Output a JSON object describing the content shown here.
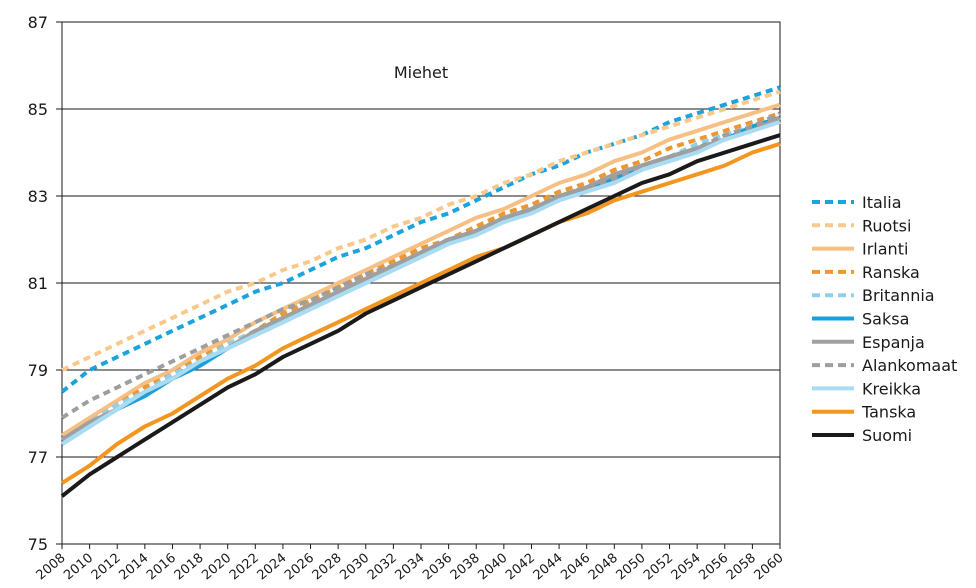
{
  "chart_data": {
    "type": "line",
    "title": "Miehet",
    "xlabel": "",
    "ylabel": "",
    "x": [
      2008,
      2010,
      2012,
      2014,
      2016,
      2018,
      2020,
      2022,
      2024,
      2026,
      2028,
      2030,
      2032,
      2034,
      2036,
      2038,
      2040,
      2042,
      2044,
      2046,
      2048,
      2050,
      2052,
      2054,
      2056,
      2058,
      2060
    ],
    "x_tick_labels": [
      "2008",
      "2010",
      "2012",
      "2014",
      "2016",
      "2018",
      "2020",
      "2022",
      "2024",
      "2026",
      "2028",
      "2030",
      "2032",
      "2034",
      "2036",
      "2038",
      "2040",
      "2042",
      "2044",
      "2046",
      "2048",
      "2050",
      "2052",
      "2054",
      "2056",
      "2058",
      "2060"
    ],
    "y_ticks": [
      75,
      77,
      79,
      81,
      83,
      85,
      87
    ],
    "ylim": [
      75,
      87
    ],
    "xlim": [
      2008,
      2060
    ],
    "grid": "horizontal",
    "legend_position": "right",
    "series": [
      {
        "name": "Italia",
        "color": "#1aa3dc",
        "dash": "dashed",
        "values": [
          78.5,
          79.0,
          79.3,
          79.6,
          79.9,
          80.2,
          80.5,
          80.8,
          81.0,
          81.3,
          81.6,
          81.8,
          82.1,
          82.4,
          82.6,
          82.9,
          83.2,
          83.5,
          83.7,
          84.0,
          84.2,
          84.4,
          84.7,
          84.9,
          85.1,
          85.3,
          85.5
        ]
      },
      {
        "name": "Ruotsi",
        "color": "#f9c98c",
        "dash": "dashed",
        "values": [
          79.0,
          79.3,
          79.6,
          79.9,
          80.2,
          80.5,
          80.8,
          81.0,
          81.3,
          81.5,
          81.8,
          82.0,
          82.3,
          82.5,
          82.8,
          83.0,
          83.3,
          83.5,
          83.8,
          84.0,
          84.2,
          84.4,
          84.6,
          84.8,
          85.0,
          85.2,
          85.4
        ]
      },
      {
        "name": "Irlanti",
        "color": "#f6bf84",
        "dash": "solid",
        "values": [
          77.5,
          77.9,
          78.3,
          78.7,
          79.0,
          79.4,
          79.7,
          80.1,
          80.4,
          80.7,
          81.0,
          81.3,
          81.6,
          81.9,
          82.2,
          82.5,
          82.7,
          83.0,
          83.3,
          83.5,
          83.8,
          84.0,
          84.3,
          84.5,
          84.7,
          84.9,
          85.1
        ]
      },
      {
        "name": "Ranska",
        "color": "#f0962e",
        "dash": "dashed",
        "values": [
          77.4,
          77.8,
          78.2,
          78.6,
          78.9,
          79.3,
          79.6,
          79.9,
          80.3,
          80.6,
          80.9,
          81.2,
          81.5,
          81.8,
          82.0,
          82.3,
          82.6,
          82.8,
          83.1,
          83.3,
          83.6,
          83.8,
          84.1,
          84.3,
          84.5,
          84.7,
          84.9
        ]
      },
      {
        "name": "Britannia",
        "color": "#8fd0ef",
        "dash": "dashed",
        "values": [
          77.4,
          77.8,
          78.2,
          78.5,
          78.9,
          79.2,
          79.6,
          79.9,
          80.2,
          80.5,
          80.8,
          81.1,
          81.4,
          81.7,
          82.0,
          82.2,
          82.5,
          82.7,
          83.0,
          83.2,
          83.5,
          83.7,
          83.9,
          84.2,
          84.4,
          84.6,
          84.8
        ]
      },
      {
        "name": "Saksa",
        "color": "#1a9fd8",
        "dash": "solid",
        "values": [
          77.3,
          77.7,
          78.1,
          78.4,
          78.8,
          79.1,
          79.5,
          79.8,
          80.1,
          80.4,
          80.7,
          81.0,
          81.3,
          81.6,
          81.9,
          82.2,
          82.4,
          82.7,
          82.9,
          83.2,
          83.4,
          83.7,
          83.9,
          84.1,
          84.3,
          84.6,
          84.8
        ]
      },
      {
        "name": "Espanja",
        "color": "#a0a0a0",
        "dash": "solid",
        "values": [
          77.4,
          77.8,
          78.1,
          78.5,
          78.8,
          79.2,
          79.5,
          79.9,
          80.2,
          80.5,
          80.8,
          81.1,
          81.4,
          81.7,
          82.0,
          82.2,
          82.5,
          82.7,
          83.0,
          83.2,
          83.5,
          83.7,
          83.9,
          84.1,
          84.3,
          84.5,
          84.8
        ]
      },
      {
        "name": "Alankomaat",
        "color": "#9e9e9e",
        "dash": "dashed",
        "values": [
          77.9,
          78.3,
          78.6,
          78.9,
          79.2,
          79.5,
          79.8,
          80.1,
          80.4,
          80.6,
          80.9,
          81.2,
          81.4,
          81.7,
          82.0,
          82.2,
          82.5,
          82.7,
          83.0,
          83.2,
          83.4,
          83.7,
          83.9,
          84.1,
          84.4,
          84.6,
          84.9
        ]
      },
      {
        "name": "Kreikka",
        "color": "#a9dcf3",
        "dash": "solid",
        "values": [
          77.3,
          77.7,
          78.1,
          78.5,
          78.8,
          79.2,
          79.5,
          79.8,
          80.1,
          80.4,
          80.7,
          81.0,
          81.3,
          81.6,
          81.9,
          82.1,
          82.4,
          82.6,
          82.9,
          83.1,
          83.3,
          83.6,
          83.8,
          84.0,
          84.3,
          84.5,
          84.7
        ]
      },
      {
        "name": "Tanska",
        "color": "#f29620",
        "dash": "solid",
        "values": [
          76.4,
          76.8,
          77.3,
          77.7,
          78.0,
          78.4,
          78.8,
          79.1,
          79.5,
          79.8,
          80.1,
          80.4,
          80.7,
          81.0,
          81.3,
          81.6,
          81.8,
          82.1,
          82.4,
          82.6,
          82.9,
          83.1,
          83.3,
          83.5,
          83.7,
          84.0,
          84.2
        ]
      },
      {
        "name": "Suomi",
        "color": "#1a1a1a",
        "dash": "solid",
        "values": [
          76.1,
          76.6,
          77.0,
          77.4,
          77.8,
          78.2,
          78.6,
          78.9,
          79.3,
          79.6,
          79.9,
          80.3,
          80.6,
          80.9,
          81.2,
          81.5,
          81.8,
          82.1,
          82.4,
          82.7,
          83.0,
          83.3,
          83.5,
          83.8,
          84.0,
          84.2,
          84.4
        ]
      }
    ]
  }
}
